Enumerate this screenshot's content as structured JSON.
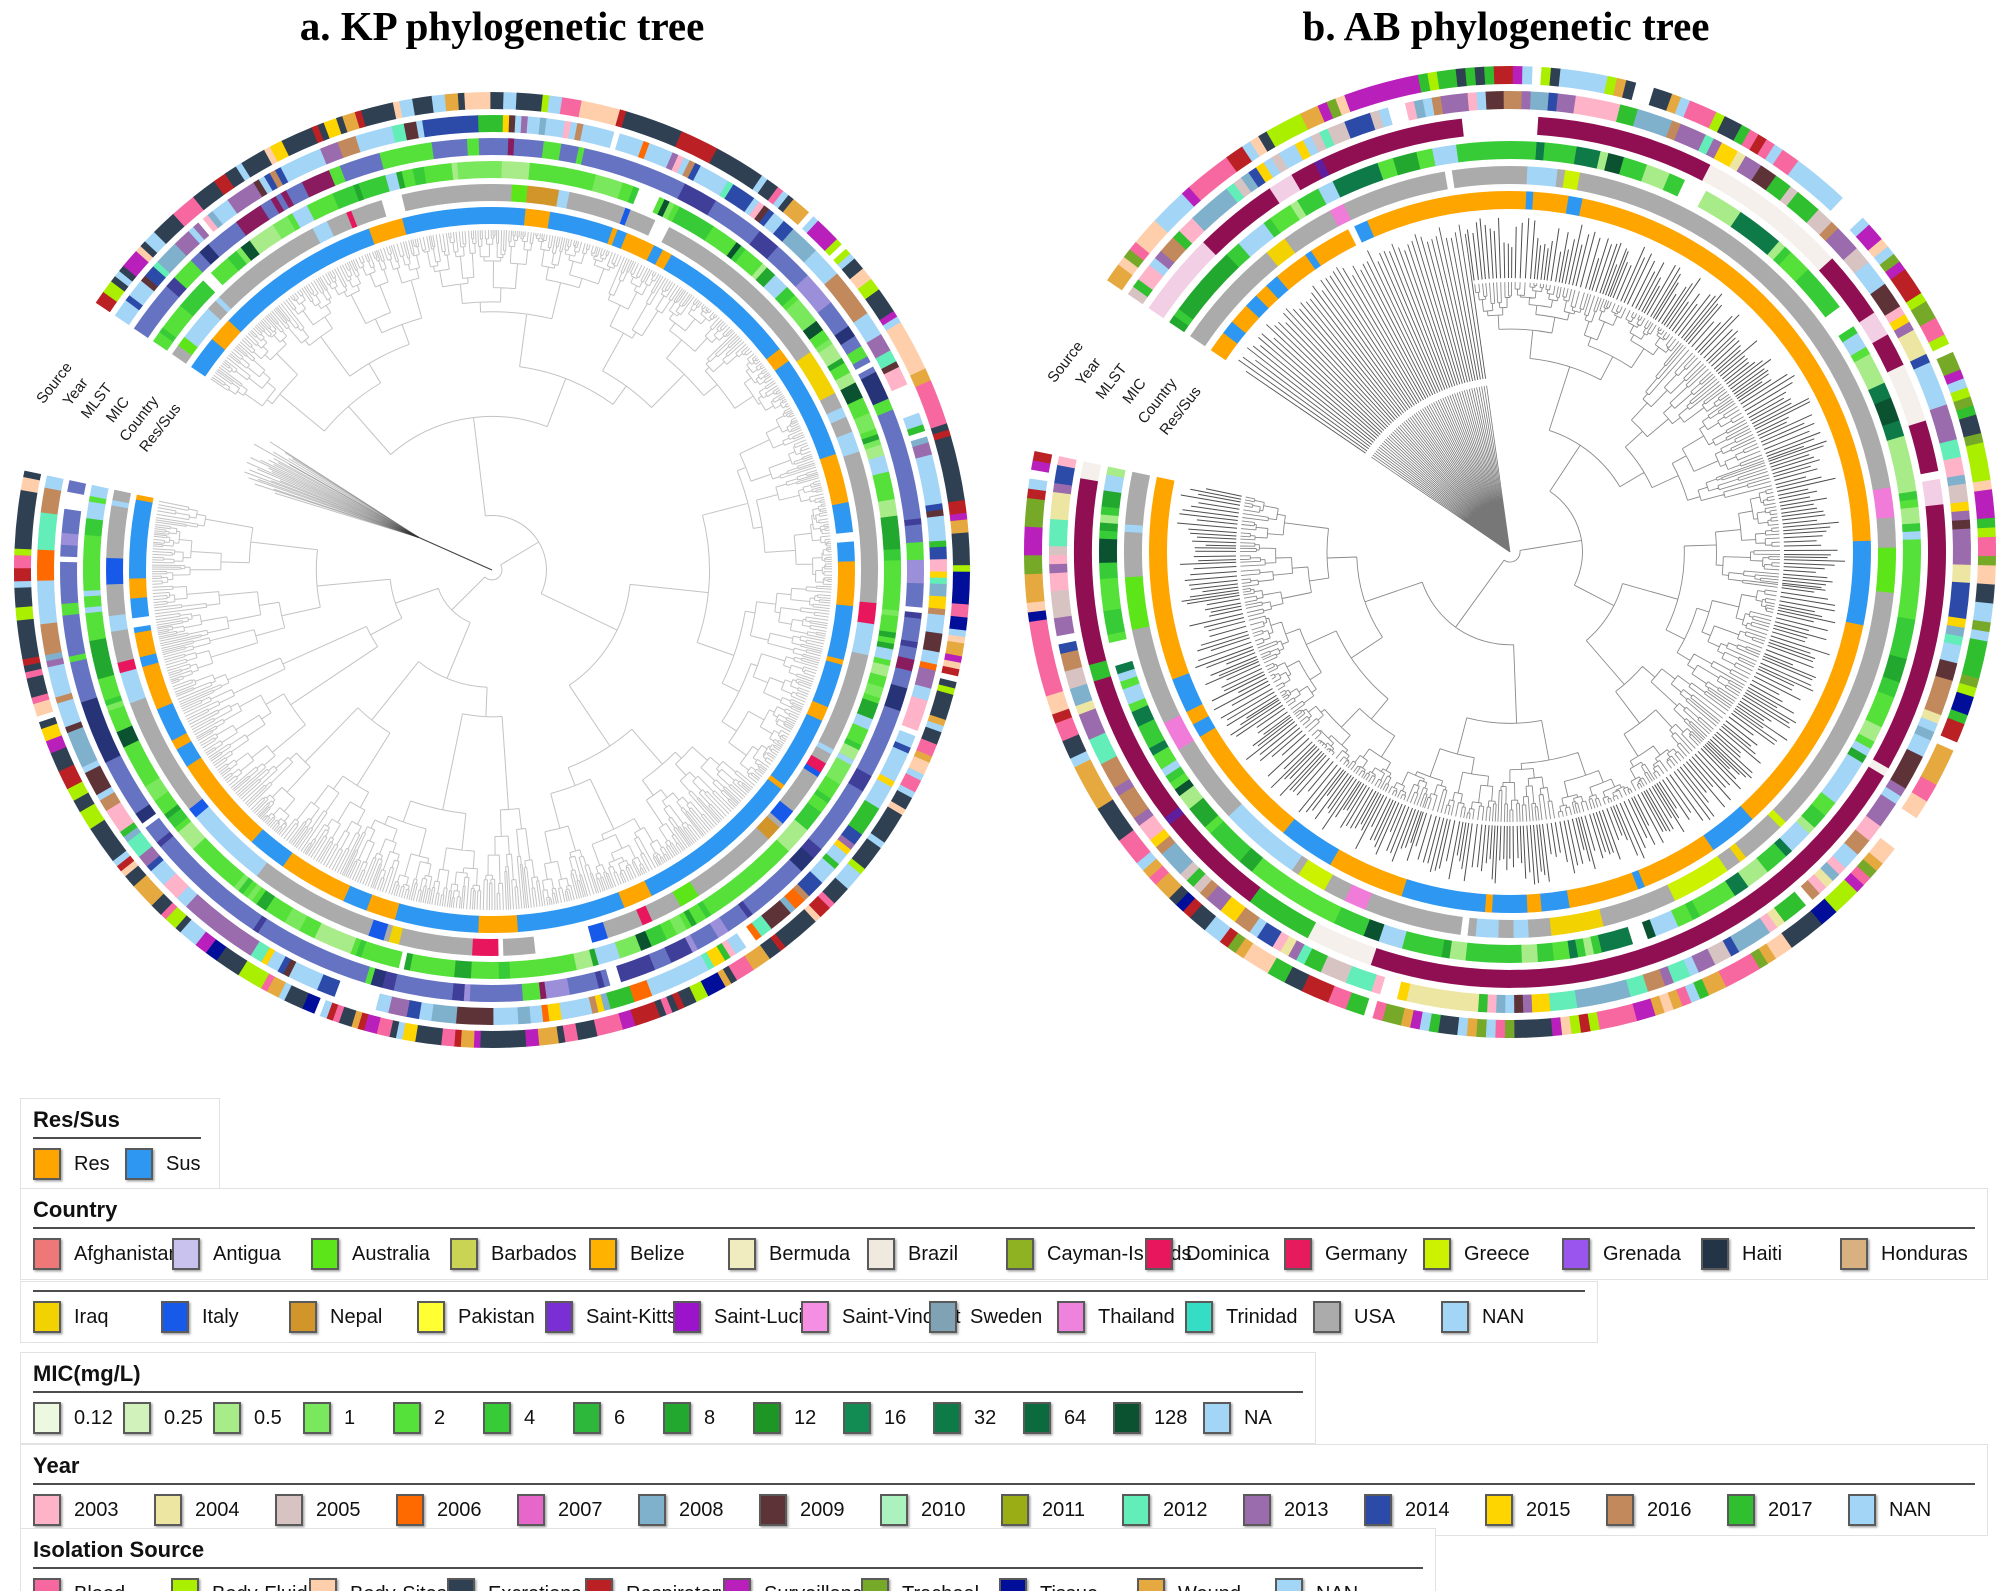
{
  "chart_data": {
    "type": "circular-phylogenetic-tree",
    "panels": [
      {
        "id": "kp",
        "title": "a. KP phylogenetic tree",
        "ring_labels_outer_to_inner": [
          "Source",
          "Year",
          "MLST",
          "MIC",
          "Country",
          "Res/Sus"
        ],
        "rings": [
          {
            "name": "Source",
            "stick": 0.45,
            "palette": [
              [
                "#2E4052",
                5
              ],
              [
                "#F768A1",
                1.1
              ],
              [
                "#BB2024",
                1
              ],
              [
                "#AAEE00",
                0.6
              ],
              [
                "#FFCFAC",
                0.5
              ],
              [
                "#B81FBB",
                0.5
              ],
              [
                "#E5A93F",
                0.8
              ],
              [
                "#A3D5F7",
                0.9
              ],
              [
                "#FFD500",
                0.4
              ],
              [
                "#000E99",
                0.3
              ],
              [
                "#FFFFFF",
                0.25
              ]
            ]
          },
          {
            "name": "Year",
            "stick": 0.5,
            "palette": [
              [
                "#A3D5F7",
                4
              ],
              [
                "#2C4BA8",
                1
              ],
              [
                "#9A6BAD",
                0.8
              ],
              [
                "#63EDB8",
                0.6
              ],
              [
                "#FFB3C8",
                0.5
              ],
              [
                "#C28A5C",
                0.6
              ],
              [
                "#2FBF2F",
                0.5
              ],
              [
                "#FFD500",
                0.5
              ],
              [
                "#5E3338",
                0.4
              ],
              [
                "#7FB0CC",
                0.6
              ],
              [
                "#FF6A00",
                0.3
              ],
              [
                "#FFFFFF",
                0.3
              ]
            ]
          },
          {
            "name": "MLST",
            "stick": 0.62,
            "palette": [
              [
                "#6673C2",
                5
              ],
              [
                "#3F3F99",
                0.9
              ],
              [
                "#8A1B5E",
                0.45
              ],
              [
                "#9B8FD9",
                0.7
              ],
              [
                "#273377",
                0.5
              ],
              [
                "#55E13A",
                0.3
              ],
              [
                "#FFFFFF",
                0.25
              ]
            ]
          },
          {
            "name": "MIC",
            "stick": 0.55,
            "palette": [
              [
                "#55E13A",
                4
              ],
              [
                "#37CC37",
                1.1
              ],
              [
                "#A8EC8A",
                0.8
              ],
              [
                "#23A82F",
                0.7
              ],
              [
                "#0A5230",
                0.35
              ],
              [
                "#A3D5F7",
                0.7
              ],
              [
                "#7AE85C",
                0.8
              ],
              [
                "#FFFFFF",
                0.2
              ]
            ]
          },
          {
            "name": "Country",
            "stick": 0.72,
            "palette": [
              [
                "#ABABAB",
                6
              ],
              [
                "#A3D5F7",
                1
              ],
              [
                "#1759E8",
                0.35
              ],
              [
                "#F2D200",
                0.3
              ],
              [
                "#5CE61A",
                0.3
              ],
              [
                "#E8175D",
                0.2
              ],
              [
                "#D2952A",
                0.2
              ],
              [
                "#FFFFFF",
                0.15
              ]
            ]
          },
          {
            "name": "Res/Sus",
            "stick": 0.72,
            "palette": [
              [
                "#2E97F2",
                5
              ],
              [
                "#FFA500",
                1.7
              ],
              [
                "#FFFFFF",
                0.1
              ]
            ]
          }
        ]
      },
      {
        "id": "ab",
        "title": "b. AB phylogenetic tree",
        "ring_labels_outer_to_inner": [
          "Source",
          "Year",
          "MLST",
          "MIC",
          "Country",
          "Res/Sus"
        ],
        "rings": [
          {
            "name": "Source",
            "stick": 0.4,
            "palette": [
              [
                "#E5A93F",
                1.5
              ],
              [
                "#F768A1",
                1.3
              ],
              [
                "#B81FBB",
                0.9
              ],
              [
                "#76A928",
                0.8
              ],
              [
                "#A3D5F7",
                1.2
              ],
              [
                "#2E4052",
                0.8
              ],
              [
                "#FFCFAC",
                0.8
              ],
              [
                "#BB2024",
                0.6
              ],
              [
                "#AAEE00",
                0.5
              ],
              [
                "#000E99",
                0.4
              ],
              [
                "#2FBF2F",
                0.5
              ],
              [
                "#FFFFFF",
                0.3
              ]
            ]
          },
          {
            "name": "Year",
            "stick": 0.45,
            "palette": [
              [
                "#9A6BAD",
                1.4
              ],
              [
                "#5E3338",
                0.8
              ],
              [
                "#FFB3C8",
                1
              ],
              [
                "#A3D5F7",
                1.2
              ],
              [
                "#7FB0CC",
                0.8
              ],
              [
                "#C28A5C",
                1
              ],
              [
                "#2FBF2F",
                0.7
              ],
              [
                "#63EDB8",
                0.5
              ],
              [
                "#D8C3C3",
                0.8
              ],
              [
                "#EDE6A2",
                0.6
              ],
              [
                "#2C4BA8",
                0.4
              ],
              [
                "#FFD500",
                0.4
              ],
              [
                "#FFFFFF",
                0.3
              ]
            ]
          },
          {
            "name": "MLST",
            "stick": 0.78,
            "palette": [
              [
                "#8F0F52",
                6
              ],
              [
                "#F2CFE4",
                0.7
              ],
              [
                "#F5F0EC",
                0.6
              ],
              [
                "#5E1E9E",
                0.3
              ],
              [
                "#2FBF2F",
                0.25
              ],
              [
                "#FFFFFF",
                0.35
              ]
            ]
          },
          {
            "name": "MIC",
            "stick": 0.55,
            "palette": [
              [
                "#37CC37",
                3
              ],
              [
                "#55E13A",
                1.5
              ],
              [
                "#0E7A48",
                1
              ],
              [
                "#A8EC8A",
                1
              ],
              [
                "#23A82F",
                1.2
              ],
              [
                "#A3D5F7",
                0.8
              ],
              [
                "#0A5230",
                0.6
              ],
              [
                "#FFFFFF",
                0.25
              ]
            ]
          },
          {
            "name": "Country",
            "stick": 0.72,
            "palette": [
              [
                "#ABABAB",
                6
              ],
              [
                "#A3D5F7",
                0.9
              ],
              [
                "#CCF200",
                0.5
              ],
              [
                "#F2D200",
                0.3
              ],
              [
                "#5CE61A",
                0.25
              ],
              [
                "#F07BD8",
                0.25
              ],
              [
                "#FFFFFF",
                0.2
              ]
            ]
          },
          {
            "name": "Res/Sus",
            "stick": 0.72,
            "palette": [
              [
                "#FFA500",
                4.5
              ],
              [
                "#2E97F2",
                1.8
              ],
              [
                "#FFFFFF",
                0.12
              ]
            ]
          }
        ]
      }
    ]
  },
  "legends": [
    {
      "id": "res-sus",
      "title": "Res/Sus",
      "rows": [
        [
          {
            "label": "Res",
            "color": "#FFA500"
          },
          {
            "label": "Sus",
            "color": "#2E97F2"
          }
        ]
      ]
    },
    {
      "id": "country",
      "title": "Country",
      "rows": [
        [
          {
            "label": "Afghanistan",
            "color": "#EE7878"
          },
          {
            "label": "Antigua",
            "color": "#C9C2EE"
          },
          {
            "label": "Australia",
            "color": "#5CE61A"
          },
          {
            "label": "Barbados",
            "color": "#C9D455"
          },
          {
            "label": "Belize",
            "color": "#FFB300"
          },
          {
            "label": "Bermuda",
            "color": "#F0ECC0"
          },
          {
            "label": "Brazil",
            "color": "#EFE9DF"
          },
          {
            "label": "Cayman-Islands",
            "color": "#8FB222"
          },
          {
            "label": "Dominica",
            "color": "#E8175D"
          },
          {
            "label": "Germany",
            "color": "#E81A5E"
          },
          {
            "label": "Greece",
            "color": "#CCF200"
          },
          {
            "label": "Grenada",
            "color": "#9955EE"
          },
          {
            "label": "Haiti",
            "color": "#243447"
          },
          {
            "label": "Honduras",
            "color": "#D9B181"
          }
        ],
        [
          {
            "label": "Iraq",
            "color": "#F2D200"
          },
          {
            "label": "Italy",
            "color": "#1759E8"
          },
          {
            "label": "Nepal",
            "color": "#D2952A"
          },
          {
            "label": "Pakistan",
            "color": "#FFFF33"
          },
          {
            "label": "Saint-Kitts",
            "color": "#7A2FD4"
          },
          {
            "label": "Saint-Lucia",
            "color": "#9B14CC"
          },
          {
            "label": "Saint-Vincent",
            "color": "#F48FE3"
          },
          {
            "label": "Sweden",
            "color": "#7FA3B5"
          },
          {
            "label": "Thailand",
            "color": "#EE82DD"
          },
          {
            "label": "Trinidad",
            "color": "#35DDC4"
          },
          {
            "label": "USA",
            "color": "#ABABAB"
          },
          {
            "label": "NAN",
            "color": "#A3D5F7"
          }
        ]
      ]
    },
    {
      "id": "mic",
      "title": "MIC(mg/L)",
      "rows": [
        [
          {
            "label": "0.12",
            "color": "#EDF8E0"
          },
          {
            "label": "0.25",
            "color": "#D2F2BC"
          },
          {
            "label": "0.5",
            "color": "#A8EC8A"
          },
          {
            "label": "1",
            "color": "#7AE85C"
          },
          {
            "label": "2",
            "color": "#55E13A"
          },
          {
            "label": "4",
            "color": "#37CC37"
          },
          {
            "label": "6",
            "color": "#2DB83C"
          },
          {
            "label": "8",
            "color": "#23A82F"
          },
          {
            "label": "12",
            "color": "#1E9626"
          },
          {
            "label": "16",
            "color": "#128C52"
          },
          {
            "label": "32",
            "color": "#0E7A48"
          },
          {
            "label": "64",
            "color": "#0B6B3E"
          },
          {
            "label": "128",
            "color": "#0A5230"
          },
          {
            "label": "NA",
            "color": "#A3D5F7"
          }
        ]
      ]
    },
    {
      "id": "year",
      "title": "Year",
      "rows": [
        [
          {
            "label": "2003",
            "color": "#FFB3C8"
          },
          {
            "label": "2004",
            "color": "#EDE6A2"
          },
          {
            "label": "2005",
            "color": "#D8C3C3"
          },
          {
            "label": "2006",
            "color": "#FF6A00"
          },
          {
            "label": "2007",
            "color": "#E667C9"
          },
          {
            "label": "2008",
            "color": "#7FB0CC"
          },
          {
            "label": "2009",
            "color": "#5E3338"
          },
          {
            "label": "2010",
            "color": "#ACF2BE"
          },
          {
            "label": "2011",
            "color": "#9AAD14"
          },
          {
            "label": "2012",
            "color": "#63EDB8"
          },
          {
            "label": "2013",
            "color": "#9A6BAD"
          },
          {
            "label": "2014",
            "color": "#2C4BA8"
          },
          {
            "label": "2015",
            "color": "#FFD500"
          },
          {
            "label": "2016",
            "color": "#C28A5C"
          },
          {
            "label": "2017",
            "color": "#2FBF2F"
          },
          {
            "label": "NAN",
            "color": "#A3D5F7"
          }
        ]
      ]
    },
    {
      "id": "isolation-source",
      "title": "Isolation Source",
      "rows": [
        [
          {
            "label": "Blood",
            "color": "#F768A1"
          },
          {
            "label": "Body-Fluid",
            "color": "#AAEE00"
          },
          {
            "label": "Body-Sites",
            "color": "#FFCFAC"
          },
          {
            "label": "Excretions",
            "color": "#2E4052"
          },
          {
            "label": "Respiratory",
            "color": "#BB2024"
          },
          {
            "label": "Surveillance",
            "color": "#B81FBB"
          },
          {
            "label": "Tracheal",
            "color": "#76A928"
          },
          {
            "label": "Tissue",
            "color": "#000E99"
          },
          {
            "label": "Wound",
            "color": "#E5A93F"
          },
          {
            "label": "NAN",
            "color": "#A3D5F7"
          }
        ]
      ]
    }
  ]
}
